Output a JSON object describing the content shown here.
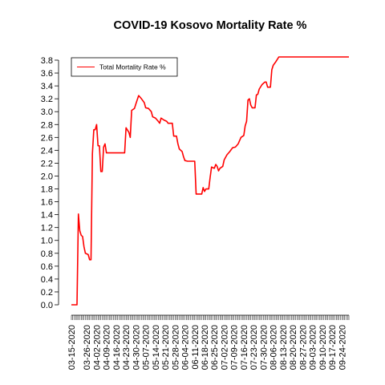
{
  "chart_data": {
    "type": "line",
    "title": "COVID-19 Kosovo Mortality Rate %",
    "xlabel": "",
    "ylabel": "",
    "legend": {
      "position": "top-left",
      "entries": [
        "Total Mortality Rate %"
      ]
    },
    "series": [
      {
        "name": "Total Mortality Rate %",
        "color": "#ff0000",
        "points": [
          [
            "03-15-2020",
            0.0
          ],
          [
            "03-19-2020",
            0.0
          ],
          [
            "03-20-2020",
            1.41
          ],
          [
            "03-21-2020",
            1.15
          ],
          [
            "03-22-2020",
            1.08
          ],
          [
            "03-23-2020",
            1.06
          ],
          [
            "03-24-2020",
            0.9
          ],
          [
            "03-25-2020",
            0.8
          ],
          [
            "03-27-2020",
            0.78
          ],
          [
            "03-28-2020",
            0.7
          ],
          [
            "03-29-2020",
            0.7
          ],
          [
            "03-30-2020",
            2.35
          ],
          [
            "03-31-2020",
            2.72
          ],
          [
            "04-01-2020",
            2.72
          ],
          [
            "04-02-2020",
            2.8
          ],
          [
            "04-03-2020",
            2.47
          ],
          [
            "04-04-2020",
            2.47
          ],
          [
            "04-05-2020",
            2.07
          ],
          [
            "04-06-2020",
            2.07
          ],
          [
            "04-07-2020",
            2.45
          ],
          [
            "04-08-2020",
            2.5
          ],
          [
            "04-09-2020",
            2.36
          ],
          [
            "04-22-2020",
            2.36
          ],
          [
            "04-23-2020",
            2.75
          ],
          [
            "04-25-2020",
            2.68
          ],
          [
            "04-26-2020",
            2.6
          ],
          [
            "04-27-2020",
            3.02
          ],
          [
            "04-29-2020",
            3.05
          ],
          [
            "04-30-2020",
            3.12
          ],
          [
            "05-02-2020",
            3.25
          ],
          [
            "05-04-2020",
            3.2
          ],
          [
            "05-06-2020",
            3.14
          ],
          [
            "05-07-2020",
            3.06
          ],
          [
            "05-09-2020",
            3.05
          ],
          [
            "05-11-2020",
            3.0
          ],
          [
            "05-12-2020",
            2.92
          ],
          [
            "05-14-2020",
            2.9
          ],
          [
            "05-16-2020",
            2.85
          ],
          [
            "05-17-2020",
            2.82
          ],
          [
            "05-18-2020",
            2.9
          ],
          [
            "05-20-2020",
            2.87
          ],
          [
            "05-22-2020",
            2.85
          ],
          [
            "05-23-2020",
            2.82
          ],
          [
            "05-26-2020",
            2.82
          ],
          [
            "05-27-2020",
            2.62
          ],
          [
            "05-29-2020",
            2.62
          ],
          [
            "05-30-2020",
            2.5
          ],
          [
            "05-31-2020",
            2.42
          ],
          [
            "06-02-2020",
            2.38
          ],
          [
            "06-03-2020",
            2.3
          ],
          [
            "06-04-2020",
            2.24
          ],
          [
            "06-06-2020",
            2.23
          ],
          [
            "06-11-2020",
            2.23
          ],
          [
            "06-12-2020",
            1.72
          ],
          [
            "06-16-2020",
            1.72
          ],
          [
            "06-17-2020",
            1.82
          ],
          [
            "06-18-2020",
            1.76
          ],
          [
            "06-19-2020",
            1.8
          ],
          [
            "06-21-2020",
            1.8
          ],
          [
            "06-22-2020",
            1.98
          ],
          [
            "06-23-2020",
            2.14
          ],
          [
            "06-25-2020",
            2.12
          ],
          [
            "06-26-2020",
            2.18
          ],
          [
            "06-27-2020",
            2.15
          ],
          [
            "06-28-2020",
            2.08
          ],
          [
            "06-29-2020",
            2.12
          ],
          [
            "07-01-2020",
            2.15
          ],
          [
            "07-02-2020",
            2.25
          ],
          [
            "07-04-2020",
            2.33
          ],
          [
            "07-06-2020",
            2.38
          ],
          [
            "07-08-2020",
            2.44
          ],
          [
            "07-10-2020",
            2.45
          ],
          [
            "07-12-2020",
            2.5
          ],
          [
            "07-14-2020",
            2.6
          ],
          [
            "07-16-2020",
            2.63
          ],
          [
            "07-17-2020",
            2.78
          ],
          [
            "07-18-2020",
            2.85
          ],
          [
            "07-19-2020",
            3.18
          ],
          [
            "07-20-2020",
            3.2
          ],
          [
            "07-21-2020",
            3.1
          ],
          [
            "07-22-2020",
            3.06
          ],
          [
            "07-24-2020",
            3.06
          ],
          [
            "07-25-2020",
            3.26
          ],
          [
            "07-26-2020",
            3.27
          ],
          [
            "07-27-2020",
            3.35
          ],
          [
            "07-29-2020",
            3.42
          ],
          [
            "07-31-2020",
            3.46
          ],
          [
            "08-01-2020",
            3.46
          ],
          [
            "08-02-2020",
            3.38
          ],
          [
            "08-04-2020",
            3.38
          ],
          [
            "08-05-2020",
            3.65
          ],
          [
            "08-06-2020",
            3.72
          ],
          [
            "08-08-2020",
            3.78
          ],
          [
            "08-10-2020",
            3.85
          ],
          [
            "09-29-2020",
            3.85
          ]
        ]
      }
    ],
    "xlim": [
      "03-15-2020",
      "09-29-2020"
    ],
    "ylim": [
      0,
      3.8
    ],
    "ytick_step": 0.2,
    "xticks": [
      "03-15-2020",
      "03-26-2020",
      "04-02-2020",
      "04-09-2020",
      "04-16-2020",
      "04-23-2020",
      "04-30-2020",
      "05-07-2020",
      "05-14-2020",
      "05-21-2020",
      "05-28-2020",
      "06-04-2020",
      "06-11-2020",
      "06-18-2020",
      "06-25-2020",
      "07-02-2020",
      "07-09-2020",
      "07-16-2020",
      "07-23-2020",
      "07-30-2020",
      "08-06-2020",
      "08-13-2020",
      "08-20-2020",
      "08-27-2020",
      "09-03-2020",
      "09-10-2020",
      "09-17-2020",
      "09-24-2020"
    ],
    "xtick_minor": "daily",
    "grid": false
  }
}
